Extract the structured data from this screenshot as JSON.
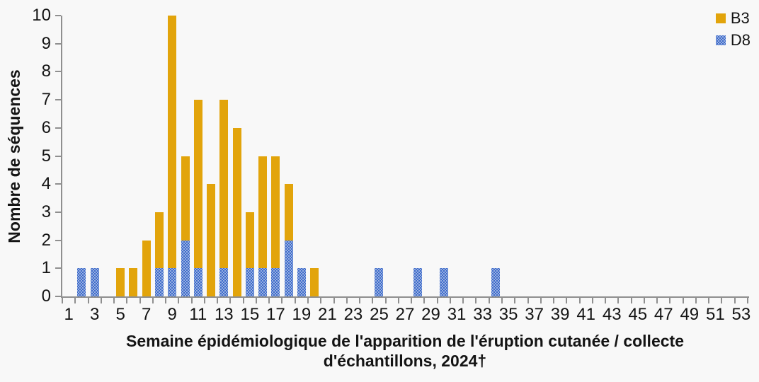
{
  "page": {
    "background": "#f8f8f8"
  },
  "legend": {
    "position": "top-right",
    "items": [
      {
        "label": "B3",
        "color": "#e2a40b",
        "pattern": "solid"
      },
      {
        "label": "D8",
        "color": "#3e6bc9",
        "pattern": "dotted-white"
      }
    ]
  },
  "chart_data": {
    "type": "bar",
    "stacked": true,
    "title": "",
    "xlabel": "Semaine épidémiologique de l'apparition de l'éruption cutanée / collecte\nd'échantillons, 2024†",
    "ylabel": "Nombre de séquences",
    "x_axis": {
      "categories_are_weeks": true,
      "week_count": 53,
      "tick_labels": [
        1,
        3,
        5,
        7,
        9,
        11,
        13,
        15,
        17,
        19,
        21,
        23,
        25,
        27,
        29,
        31,
        33,
        35,
        37,
        39,
        41,
        43,
        45,
        47,
        49,
        51,
        53
      ]
    },
    "y_axis": {
      "ylim": [
        0,
        10
      ],
      "ticks": [
        0,
        1,
        2,
        3,
        4,
        5,
        6,
        7,
        8,
        9,
        10
      ]
    },
    "grid": "off",
    "legend_position": "top-right",
    "stack_order_bottom_to_top": [
      "D8",
      "B3"
    ],
    "series": [
      {
        "name": "B3",
        "color": "#e2a40b",
        "pattern": "solid",
        "values": [
          0,
          0,
          0,
          0,
          1,
          1,
          2,
          2,
          9,
          3,
          6,
          4,
          6,
          6,
          2,
          4,
          4,
          2,
          0,
          1,
          0,
          0,
          0,
          0,
          0,
          0,
          0,
          0,
          0,
          0,
          0,
          0,
          0,
          0,
          0,
          0,
          0,
          0,
          0,
          0,
          0,
          0,
          0,
          0,
          0,
          0,
          0,
          0,
          0,
          0,
          0,
          0,
          0
        ]
      },
      {
        "name": "D8",
        "color": "#3e6bc9",
        "pattern": "dotted-white",
        "values": [
          0,
          1,
          1,
          0,
          0,
          0,
          0,
          1,
          1,
          2,
          1,
          0,
          1,
          0,
          1,
          1,
          1,
          2,
          1,
          0,
          0,
          0,
          0,
          0,
          1,
          0,
          0,
          1,
          0,
          1,
          0,
          0,
          0,
          1,
          0,
          0,
          0,
          0,
          0,
          0,
          0,
          0,
          0,
          0,
          0,
          0,
          0,
          0,
          0,
          0,
          0,
          0,
          0
        ]
      }
    ]
  }
}
